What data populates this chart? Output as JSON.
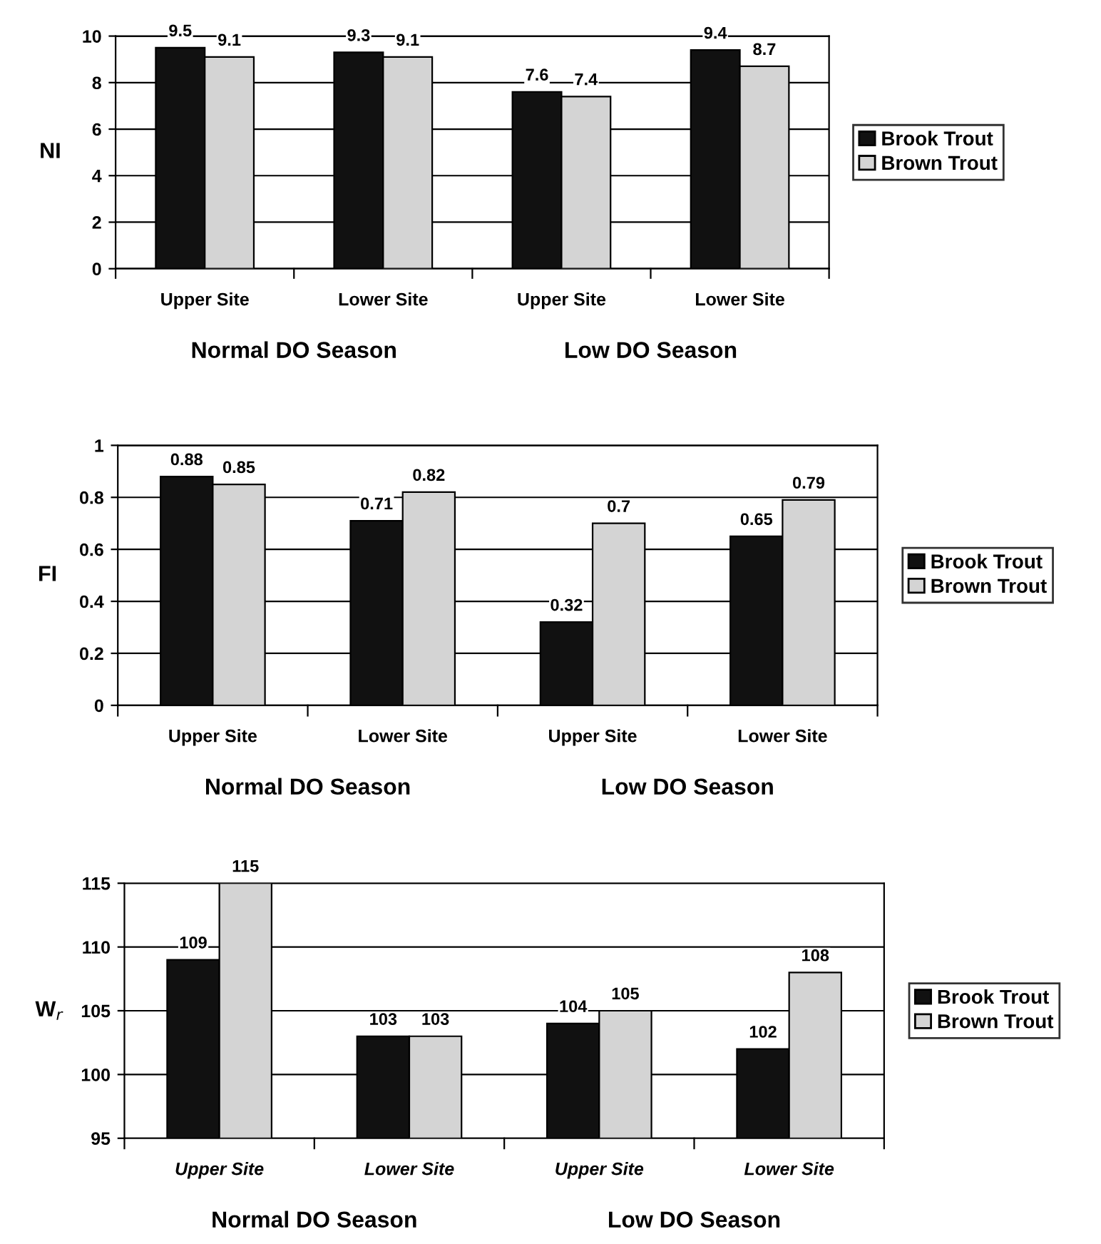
{
  "chart_data": [
    {
      "type": "bar",
      "ylabel": "NI",
      "categories": [
        "Upper Site",
        "Lower Site",
        "Upper Site",
        "Lower Site"
      ],
      "series": [
        {
          "name": "Brook Trout",
          "color": "#111111",
          "values": [
            9.5,
            9.3,
            7.6,
            9.4
          ]
        },
        {
          "name": "Brown Trout",
          "color": "#d4d4d4",
          "values": [
            9.1,
            9.1,
            7.4,
            8.7
          ]
        }
      ],
      "ylim": [
        0,
        10
      ],
      "yticks": [
        0,
        2,
        4,
        6,
        8,
        10
      ],
      "grid": "y",
      "legend": "right",
      "data_labels": true,
      "annotations": [
        "Normal DO Season",
        "Low DO Season"
      ]
    },
    {
      "type": "bar",
      "ylabel": "FI",
      "categories": [
        "Upper Site",
        "Lower Site",
        "Upper Site",
        "Lower Site"
      ],
      "series": [
        {
          "name": "Brook Trout",
          "color": "#111111",
          "values": [
            0.88,
            0.71,
            0.32,
            0.65
          ]
        },
        {
          "name": "Brown Trout",
          "color": "#d4d4d4",
          "values": [
            0.85,
            0.82,
            0.7,
            0.79
          ]
        }
      ],
      "ylim": [
        0,
        1
      ],
      "yticks": [
        0,
        0.2,
        0.4,
        0.6,
        0.8,
        1
      ],
      "grid": "y",
      "legend": "right",
      "data_labels": true,
      "annotations": [
        "Normal DO Season",
        "Low DO Season"
      ]
    },
    {
      "type": "bar",
      "ylabel": "W$_{r}$",
      "categories": [
        "Upper Site",
        "Lower Site",
        "Upper Site",
        "Lower Site"
      ],
      "series": [
        {
          "name": "Brook Trout",
          "color": "#111111",
          "values": [
            109,
            103,
            104,
            102
          ]
        },
        {
          "name": "Brown Trout",
          "color": "#d4d4d4",
          "values": [
            115,
            103,
            105,
            108
          ]
        }
      ],
      "ylim": [
        95,
        115
      ],
      "yticks": [
        95,
        100,
        105,
        110,
        115
      ],
      "grid": "y",
      "legend": "right",
      "data_labels": true,
      "annotations": [
        "Normal DO Season",
        "Low DO Season"
      ]
    }
  ]
}
